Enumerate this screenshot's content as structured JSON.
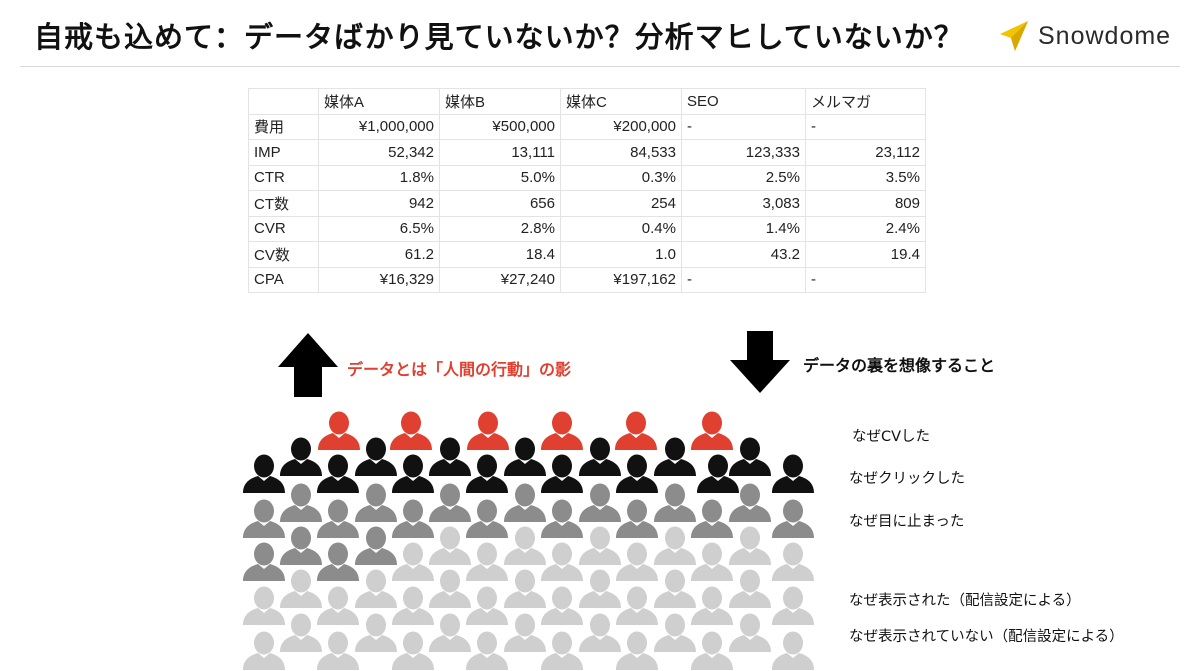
{
  "title": "自戒も込めて：データばかり見ていないか？分析マヒしていないか？",
  "brand": {
    "name": "Snowdome",
    "logo_icon": "paper-plane-icon",
    "logo_color": "#f2c300"
  },
  "table": {
    "columns": [
      "",
      "媒体A",
      "媒体B",
      "媒体C",
      "SEO",
      "メルマガ"
    ],
    "rows": [
      [
        "費用",
        "¥1,000,000",
        "¥500,000",
        "¥200,000",
        "-",
        "-"
      ],
      [
        "IMP",
        "52,342",
        "13,111",
        "84,533",
        "123,333",
        "23,112"
      ],
      [
        "CTR",
        "1.8%",
        "5.0%",
        "0.3%",
        "2.5%",
        "3.5%"
      ],
      [
        "CT数",
        "942",
        "656",
        "254",
        "3,083",
        "809"
      ],
      [
        "CVR",
        "6.5%",
        "2.8%",
        "0.4%",
        "1.4%",
        "2.4%"
      ],
      [
        "CV数",
        "61.2",
        "18.4",
        "1.0",
        "43.2",
        "19.4"
      ],
      [
        "CPA",
        "¥16,329",
        "¥27,240",
        "¥197,162",
        "-",
        "-"
      ]
    ]
  },
  "arrows": {
    "up_icon": "arrow-up-icon",
    "down_icon": "arrow-down-icon"
  },
  "left_caption": "データとは「人間の行動」の影",
  "right_caption": "データの裏を想像すること",
  "reasons": [
    "なぜCVした",
    "なぜクリックした",
    "なぜ目に止まった",
    "なぜ表示された（配信設定による）",
    "なぜ表示されていない（配信設定による）"
  ],
  "crowd": {
    "icon": "person-icon",
    "colors": {
      "converted": "#e0402f",
      "clicked": "#111111",
      "viewed": "#8c8c8c",
      "not_shown": "#cfcfcf"
    },
    "counts": {
      "converted": 6,
      "clicked": 18,
      "viewed": 20,
      "not_shown": 34
    }
  },
  "colors": {
    "accent_red": "#e0402f",
    "text": "#111111"
  }
}
